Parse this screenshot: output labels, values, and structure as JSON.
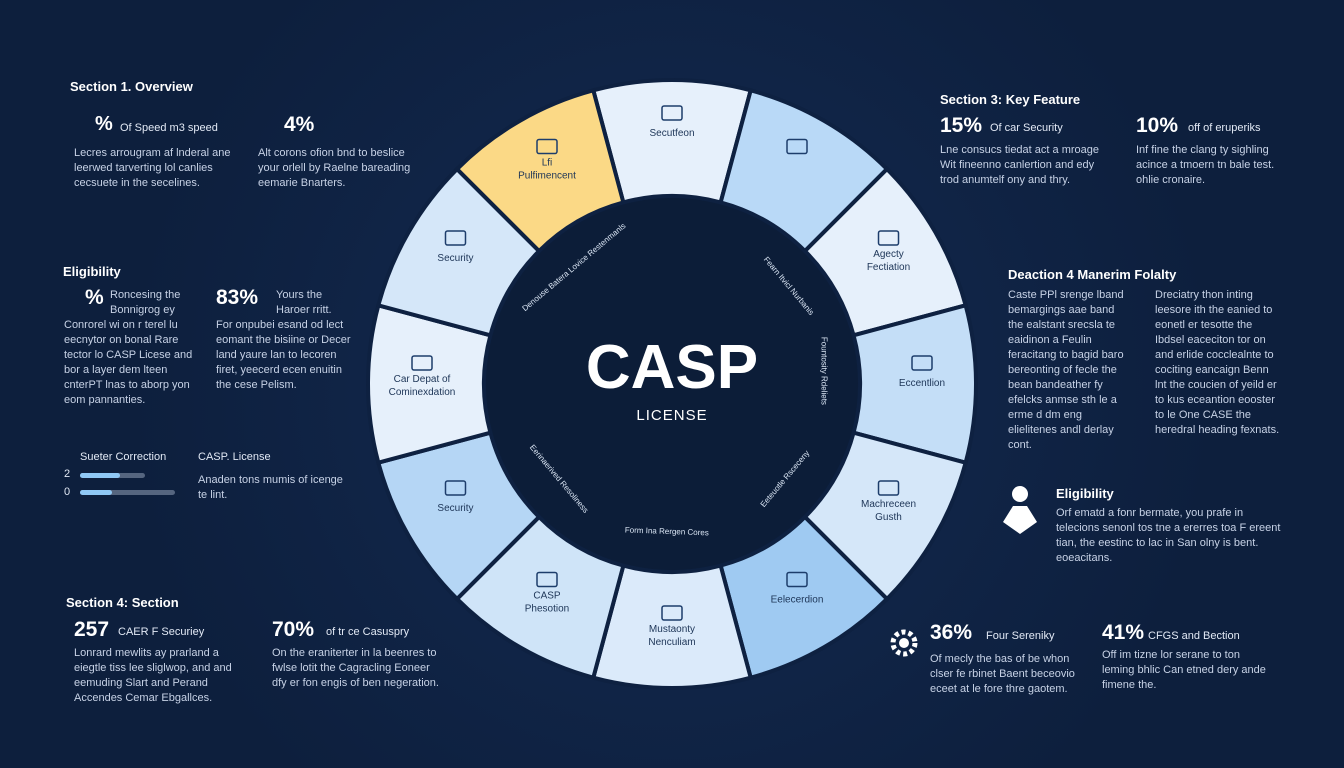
{
  "center": {
    "title": "CASP",
    "subtitle": "LICENSE"
  },
  "ring": {
    "segments": [
      {
        "lines": [
          "Secutfeon"
        ],
        "color": "#e6f0fb"
      },
      {
        "lines": [
          ""
        ],
        "color": "#b9d9f7"
      },
      {
        "lines": [
          "Agecty",
          "Fectiation"
        ],
        "color": "#e6f0fb"
      },
      {
        "lines": [
          "Eccentlion"
        ],
        "color": "#c4def7"
      },
      {
        "lines": [
          "Machreceen",
          "Gusth"
        ],
        "color": "#d5e7f9"
      },
      {
        "lines": [
          "Eelecerdion"
        ],
        "color": "#9fcaf2"
      },
      {
        "lines": [
          "Mustaonty",
          "Nenculiam"
        ],
        "color": "#dbeafa"
      },
      {
        "lines": [
          "CASP",
          "Phesotion"
        ],
        "color": "#cfe4f8"
      },
      {
        "lines": [
          "Security"
        ],
        "color": "#b5d6f5"
      },
      {
        "lines": [
          "Car Depat of",
          "Cominexdation"
        ],
        "color": "#e6f0fb"
      },
      {
        "lines": [
          "Security"
        ],
        "color": "#d5e7f9"
      },
      {
        "lines": [
          "Lfi",
          "Pulfimencent"
        ],
        "color": "#fbd986"
      }
    ],
    "inner_labels": [
      "Denouse Batera Lovice Restenmanls",
      "Fearn Itvicl Nurbanis",
      "Fountosity Rdeliets",
      "Eeteuotle Rsceceny",
      "Form Ina Rergen Cores",
      "Eerinaerived Resoliness"
    ]
  },
  "left": {
    "section1": {
      "heading": "Section 1. Overview",
      "stat1": {
        "value": "%",
        "label": "Of Speed m3 speed",
        "text": "Lecres arrougram af lnderal ane leerwed tarverting lol canlies cecsuete in the secelines."
      },
      "stat2": {
        "value": "4%",
        "text": "Alt corons ofion bnd to beslice your orlell by Raelne bareading eemarie Bnarters."
      }
    },
    "eligibility": {
      "heading": "Eligibility",
      "stat1": {
        "value": "%",
        "label": "Roncesing the Bonnigrog ey",
        "text": "Conrorel wi on r terel lu eecnytor on bonal Rare tector lo CASP Licese and bor a layer dem lteen cnterPT lnas to aborp yon eom pannanties."
      },
      "stat2": {
        "value": "83%",
        "label": "Yours the Haroer rritt.",
        "text": "For onpubei esand od lect eomant the bisiine or Decer land yaure lan to lecoren firet, yeecerd ecen enuitin the cese Pelism."
      }
    },
    "progress": {
      "label": "Sueter Correction",
      "rows": [
        "2",
        "0"
      ],
      "title": "CASP. License",
      "text": "Anaden tons mumis of icenge te lint."
    },
    "section4": {
      "heading": "Section 4: Section",
      "stat1": {
        "value": "257",
        "label": "CAER F Securiey",
        "text": "Lonrard mewlits ay prarland a eiegtle tiss lee sliglwop, and and eemuding Slart and Perand Accendes Cemar Ebgallces."
      },
      "stat2": {
        "value": "70%",
        "label": "of tr ce Casuspry",
        "text": "On the eraniterter in la beenres to fwlse lotit the Cagracling Eoneer dfy er fon engis of ben negeration."
      }
    }
  },
  "right": {
    "section3": {
      "heading": "Section 3: Key Feature",
      "stat1": {
        "value": "15%",
        "label": "Of car Security",
        "text": "Lne consucs tiedat act a mroage Wit fineenno canlertion and edy trod anumtelf ony and thry."
      },
      "stat2": {
        "value": "10%",
        "label": "off of eruperiks",
        "text": "Inf fine the clang ty sighling acince a tmoern tn bale test. ohlie cronaire."
      }
    },
    "deaction": {
      "heading": "Deaction 4 Manerim Folalty",
      "text1": "Caste PPl srenge lband bemargings aae band the ealstant srecsla te eaidinon a Feulin feracitang to bagid baro bereonting of fecle the bean bandeather fy efelcks anmse sth le a erme d dm eng elielitenes andl derlay cont.",
      "text2": "Dreciatry thon inting leesore ith the eanied to eonetl er tesotte the Ibdsel eaceciton tor on and erlide cocclealnte to cociting eancaign Benn lnt the coucien of yeild er to kus eceantion eooster to le One CASE the heredral heading fexnats."
    },
    "eligibility": {
      "heading": "Eligibility",
      "text": "Orf ematd a fonr bermate, you prafe in telecions senonl tos tne a ererres toa F ereent tian, the eestinc to lac in San olny is bent. eoeacitans."
    },
    "stat1": {
      "value": "36%",
      "label": "Four Sereniky",
      "text": "Of mecly the bas of be whon clser fe rbinet Baent beceovio eceet at le fore thre gaotem."
    },
    "stat2": {
      "value": "41%",
      "label": "CFGS and Bection",
      "text": "Off im tizne lor serane to ton leming bhlic Can etned dery ande fimene the."
    }
  }
}
